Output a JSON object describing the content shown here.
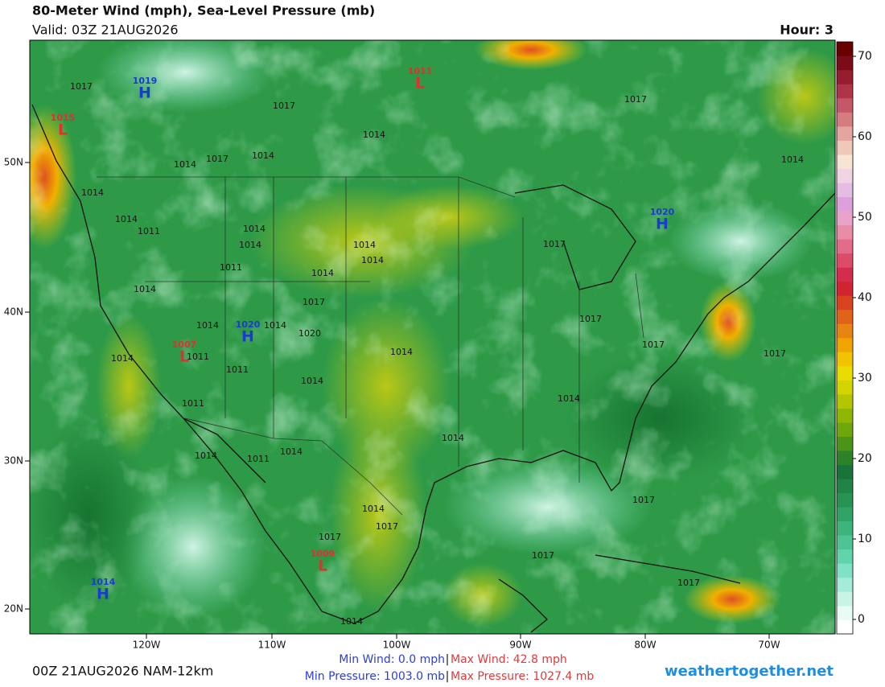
{
  "header": {
    "title": "80-Meter Wind (mph), Sea-Level Pressure (mb)",
    "valid": "Valid: 03Z 21AUG2026",
    "hour": "Hour: 3"
  },
  "colorbar": {
    "ticks": [
      0,
      10,
      20,
      30,
      40,
      50,
      60,
      70
    ],
    "colors": [
      "#ffffff",
      "#e8fbf4",
      "#c8f4e6",
      "#a4ecd8",
      "#80e2c4",
      "#62d4ac",
      "#4cc494",
      "#3cb47c",
      "#30a466",
      "#279454",
      "#1f8446",
      "#18743a",
      "#2c8226",
      "#4c9418",
      "#6ea60c",
      "#90b604",
      "#b4c600",
      "#d4d400",
      "#e8dc00",
      "#f0c400",
      "#f0a400",
      "#e88410",
      "#e06418",
      "#d84420",
      "#d02430",
      "#d42c4c",
      "#dc4c68",
      "#e46c88",
      "#e88ca8",
      "#e8a4c8",
      "#dca0dc",
      "#e4bce4",
      "#f0d4e4",
      "#f8e4d4",
      "#f0c8b8",
      "#e4a4a0",
      "#d47c80",
      "#c45868",
      "#b03448",
      "#981c30",
      "#7c0a18",
      "#680000"
    ]
  },
  "map": {
    "lat_labels": [
      "50N",
      "40N",
      "30N",
      "20N"
    ],
    "lon_labels": [
      "120W",
      "110W",
      "100W",
      "90W",
      "80W",
      "70W"
    ],
    "centers": [
      {
        "letter": "L",
        "value": 1015
      },
      {
        "letter": "H",
        "value": 1019
      },
      {
        "letter": "L",
        "value": 1011
      },
      {
        "letter": "H",
        "value": 1020
      },
      {
        "letter": "H",
        "value": 1020
      },
      {
        "letter": "L",
        "value": 1007
      },
      {
        "letter": "L",
        "value": 1009
      },
      {
        "letter": "H",
        "value": 1014
      }
    ],
    "isobar_labels": [
      1017,
      1017,
      1014,
      1014,
      1017,
      1014,
      1014,
      1014,
      1011,
      1014,
      1014,
      1014,
      1014,
      1011,
      1014,
      1014,
      1017,
      1014,
      1014,
      1020,
      1014,
      1017,
      1017,
      1017,
      1014,
      1011,
      1011,
      1014,
      1014,
      1011,
      1014,
      1014,
      1011,
      1014,
      1014,
      1017,
      1017,
      1017,
      1017,
      1017,
      1014,
      1017,
      1017,
      1014
    ]
  },
  "footer": {
    "run": "00Z 21AUG2026 NAM-12km",
    "min_wind": "Min Wind:  0.0 mph",
    "max_wind": "Max Wind:  42.8 mph",
    "min_pressure": "Min Pressure: 1003.0 mb",
    "max_pressure": "Max Pressure: 1027.4 mb",
    "separator": "|",
    "site": "weathertogether.net"
  }
}
